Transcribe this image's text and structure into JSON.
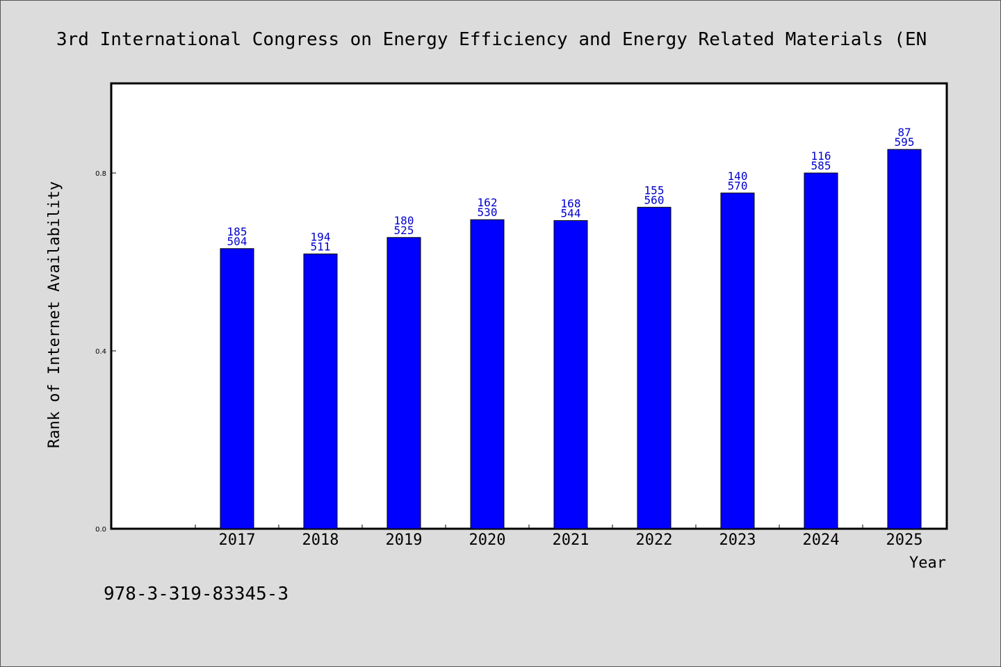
{
  "chart_data": {
    "type": "bar",
    "title": "3rd International Congress on Energy Efficiency and Energy Related Materials (EN",
    "xlabel": "Year",
    "ylabel": "Rank of Internet Availability",
    "categories": [
      "2017",
      "2018",
      "2019",
      "2020",
      "2021",
      "2022",
      "2023",
      "2024",
      "2025"
    ],
    "series": [
      {
        "values": [
          0.63,
          0.618,
          0.655,
          0.695,
          0.693,
          0.723,
          0.755,
          0.8,
          0.853
        ],
        "label_top": [
          "185",
          "194",
          "180",
          "162",
          "168",
          "155",
          "140",
          "116",
          "87"
        ],
        "label_bottom": [
          "504",
          "511",
          "525",
          "530",
          "544",
          "560",
          "570",
          "585",
          "595"
        ]
      }
    ],
    "ylim": [
      0,
      1.0
    ],
    "yticks": [
      "0.0",
      "0.4",
      "0.8"
    ],
    "ytick_values": [
      0.0,
      0.4,
      0.8
    ],
    "grid": false,
    "bar_color": "#0000ff",
    "label_color": "#0000cc",
    "plot_background": "#ffffff",
    "page_background": "#dcdcdc"
  },
  "footer": {
    "isbn": "978-3-319-83345-3"
  }
}
